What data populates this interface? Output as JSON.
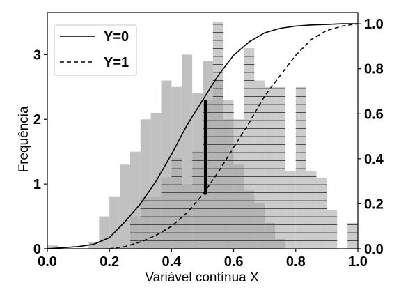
{
  "chart_data": {
    "type": "histogram",
    "xlabel": "Variável contínua X",
    "ylabel": "Frequência",
    "xlim": [
      0.0,
      1.0
    ],
    "ylim_left": [
      0,
      3.65
    ],
    "ylim_right": [
      0,
      1.05
    ],
    "x_ticks": [
      "0.0",
      "0.2",
      "0.4",
      "0.6",
      "0.8",
      "1.0"
    ],
    "y_ticks_left": [
      "0",
      "1",
      "2",
      "3"
    ],
    "y_ticks_right": [
      "0.0",
      "0.2",
      "0.4",
      "0.6",
      "0.8",
      "1.0"
    ],
    "bin_width": 0.0333,
    "hist_y0": {
      "color": "#c0c0c0",
      "bins": [
        [
          0.0,
          0.05
        ],
        [
          0.0333,
          0.0
        ],
        [
          0.0667,
          0.0
        ],
        [
          0.1,
          0.0
        ],
        [
          0.1333,
          0.1
        ],
        [
          0.1667,
          0.5
        ],
        [
          0.2,
          0.8
        ],
        [
          0.2333,
          1.3
        ],
        [
          0.2667,
          1.5
        ],
        [
          0.3,
          2.0
        ],
        [
          0.3333,
          2.1
        ],
        [
          0.3667,
          2.6
        ],
        [
          0.4,
          2.5
        ],
        [
          0.4333,
          3.0
        ],
        [
          0.4667,
          2.4
        ],
        [
          0.5,
          2.9
        ],
        [
          0.5333,
          2.6
        ],
        [
          0.5667,
          2.0
        ],
        [
          0.6,
          1.3
        ],
        [
          0.6333,
          0.9
        ],
        [
          0.6667,
          0.7
        ],
        [
          0.7,
          0.4
        ],
        [
          0.7333,
          0.15
        ],
        [
          0.7667,
          0.0
        ]
      ]
    },
    "hist_y1": {
      "color": "#aaaaaa",
      "hatch": "horizontal",
      "bins": [
        [
          0.2,
          0.03
        ],
        [
          0.2333,
          0.03
        ],
        [
          0.2667,
          0.5
        ],
        [
          0.3,
          0.8
        ],
        [
          0.3333,
          0.8
        ],
        [
          0.3667,
          1.1
        ],
        [
          0.4,
          1.4
        ],
        [
          0.4333,
          1.0
        ],
        [
          0.4667,
          1.5
        ],
        [
          0.5,
          2.3
        ],
        [
          0.5333,
          3.5
        ],
        [
          0.5667,
          2.3
        ],
        [
          0.6,
          2.0
        ],
        [
          0.6333,
          3.1
        ],
        [
          0.6667,
          2.6
        ],
        [
          0.7,
          2.5
        ],
        [
          0.7333,
          2.5
        ],
        [
          0.7667,
          1.2
        ],
        [
          0.8,
          2.5
        ],
        [
          0.8333,
          1.2
        ],
        [
          0.8667,
          1.1
        ],
        [
          0.9,
          0.6
        ],
        [
          0.9333,
          0.0
        ],
        [
          0.9667,
          0.4
        ]
      ]
    },
    "cdf_y0": {
      "name": "Y=0",
      "style": "solid",
      "x": [
        0.0,
        0.1,
        0.15,
        0.2,
        0.25,
        0.3,
        0.35,
        0.4,
        0.45,
        0.5,
        0.55,
        0.6,
        0.65,
        0.7,
        0.75,
        0.8,
        0.85,
        0.9,
        0.95,
        1.0
      ],
      "y": [
        0.0,
        0.01,
        0.02,
        0.05,
        0.12,
        0.2,
        0.3,
        0.42,
        0.55,
        0.66,
        0.77,
        0.86,
        0.92,
        0.96,
        0.98,
        0.99,
        0.995,
        0.997,
        1.0,
        1.0
      ]
    },
    "cdf_y1": {
      "name": "Y=1",
      "style": "dashed",
      "x": [
        0.2,
        0.25,
        0.3,
        0.35,
        0.4,
        0.45,
        0.5,
        0.55,
        0.6,
        0.65,
        0.7,
        0.75,
        0.8,
        0.85,
        0.9,
        0.95,
        1.0
      ],
      "y": [
        0.0,
        0.01,
        0.03,
        0.06,
        0.1,
        0.16,
        0.24,
        0.34,
        0.45,
        0.56,
        0.68,
        0.77,
        0.86,
        0.93,
        0.97,
        0.99,
        1.0
      ]
    },
    "vline": {
      "x": 0.51,
      "y_from": 0.24,
      "y_to": 0.66,
      "color": "#000000"
    },
    "legend": {
      "position": "top-left",
      "entries": [
        "Y=0",
        "Y=1"
      ]
    }
  }
}
